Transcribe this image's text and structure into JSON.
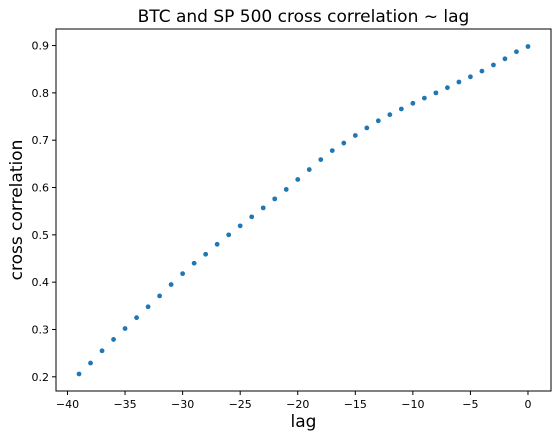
{
  "chart_data": {
    "type": "scatter",
    "title": "BTC and SP 500 cross correlation ~ lag",
    "xlabel": "lag",
    "ylabel": "cross correlation",
    "xlim": [
      -41,
      2
    ],
    "ylim": [
      0.17,
      0.935
    ],
    "xticks": [
      -40,
      -35,
      -30,
      -25,
      -20,
      -15,
      -10,
      -5,
      0
    ],
    "yticks": [
      0.2,
      0.3,
      0.4,
      0.5,
      0.6,
      0.7,
      0.8,
      0.9
    ],
    "grid": false,
    "legend": "none",
    "color": "#1f77b4",
    "x": [
      -39,
      -38,
      -37,
      -36,
      -35,
      -34,
      -33,
      -32,
      -31,
      -30,
      -29,
      -28,
      -27,
      -26,
      -25,
      -24,
      -23,
      -22,
      -21,
      -20,
      -19,
      -18,
      -17,
      -16,
      -15,
      -14,
      -13,
      -12,
      -11,
      -10,
      -9,
      -8,
      -7,
      -6,
      -5,
      -4,
      -3,
      -2,
      -1,
      0
    ],
    "y": [
      0.206,
      0.229,
      0.255,
      0.279,
      0.302,
      0.325,
      0.348,
      0.371,
      0.395,
      0.418,
      0.44,
      0.459,
      0.48,
      0.5,
      0.519,
      0.538,
      0.557,
      0.576,
      0.596,
      0.617,
      0.638,
      0.659,
      0.678,
      0.694,
      0.71,
      0.726,
      0.741,
      0.754,
      0.766,
      0.778,
      0.789,
      0.8,
      0.811,
      0.823,
      0.834,
      0.846,
      0.859,
      0.872,
      0.887,
      0.898
    ]
  }
}
